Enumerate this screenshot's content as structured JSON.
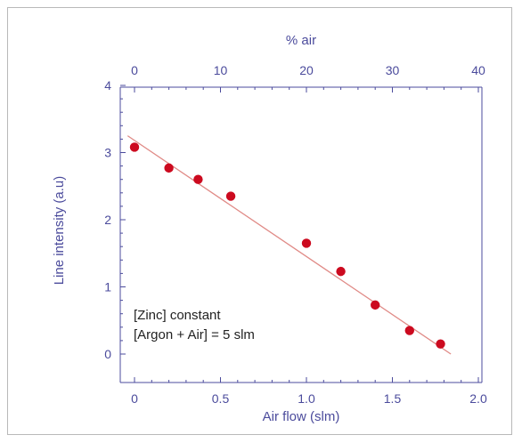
{
  "chart_data": {
    "type": "scatter",
    "xlabel": "Air flow (slm)",
    "ylabel": "Line intensity (a.u)",
    "top_xlabel": "% air",
    "xlim": [
      -0.1,
      2.0
    ],
    "ylim": [
      -0.2,
      4.0
    ],
    "xticks": [
      0,
      0.5,
      1.0,
      1.5,
      2.0
    ],
    "xtick_labels": [
      "0",
      "0.5",
      "1.0",
      "1.5",
      "2.0"
    ],
    "yticks": [
      0,
      1,
      2,
      3,
      4
    ],
    "ytick_labels": [
      "0",
      "1",
      "2",
      "3",
      "4"
    ],
    "top_xticks_pct": [
      0,
      10,
      20,
      30,
      40
    ],
    "top_xtick_labels": [
      "0",
      "10",
      "20",
      "30",
      "40"
    ],
    "pct_per_slm": 20,
    "grid": false,
    "series": [
      {
        "points": [
          {
            "x": 0.0,
            "y": 3.08
          },
          {
            "x": 0.2,
            "y": 2.77
          },
          {
            "x": 0.37,
            "y": 2.6
          },
          {
            "x": 0.56,
            "y": 2.35
          },
          {
            "x": 1.0,
            "y": 1.65
          },
          {
            "x": 1.2,
            "y": 1.23
          },
          {
            "x": 1.4,
            "y": 0.73
          },
          {
            "x": 1.6,
            "y": 0.35
          },
          {
            "x": 1.78,
            "y": 0.15
          }
        ]
      }
    ],
    "fit_line": {
      "x": [
        -0.04,
        1.84
      ],
      "y": [
        3.25,
        0.0
      ]
    },
    "annotations": [
      "[Zinc] constant",
      "[Argon + Air] = 5 slm"
    ],
    "colors": {
      "points": "#cc0a1f",
      "fit": "#e08a86",
      "axis": "#4b4b9c",
      "text": "#222222"
    }
  }
}
